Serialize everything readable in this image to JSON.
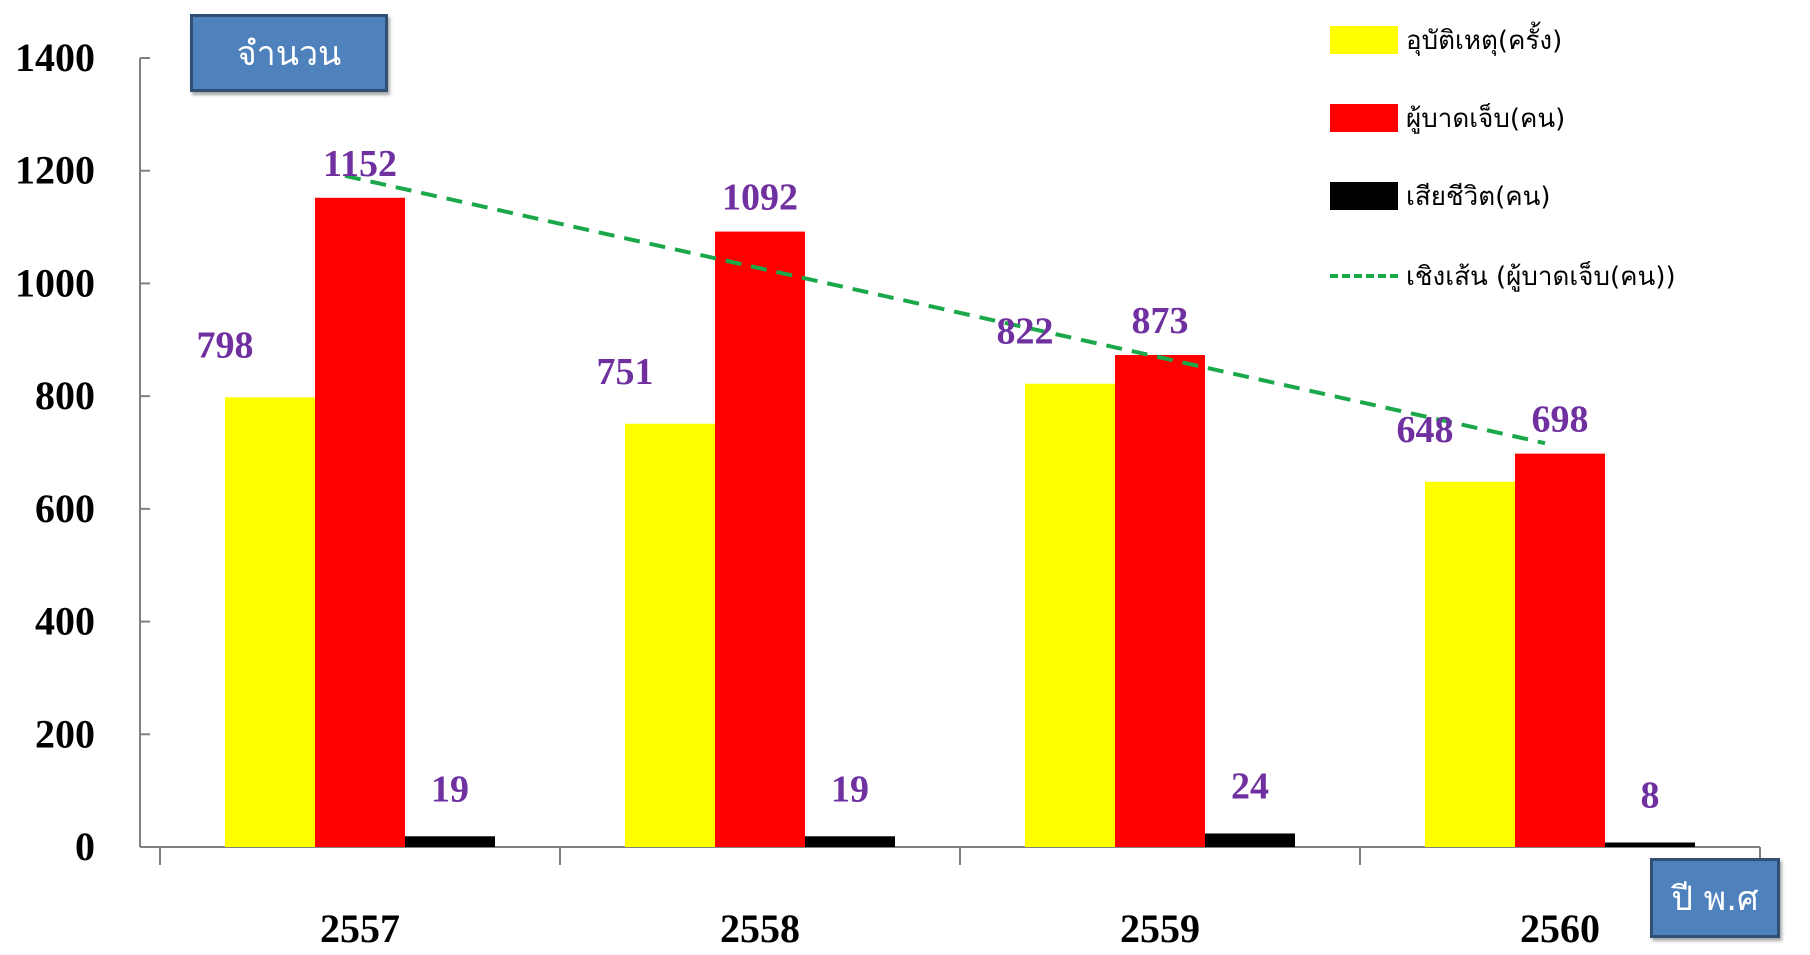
{
  "chart_data": {
    "type": "bar",
    "categories": [
      "2557",
      "2558",
      "2559",
      "2560"
    ],
    "series": [
      {
        "name": "อุบัติเหตุ(ครั้ง)",
        "values": [
          798,
          751,
          822,
          648
        ],
        "color": "#FFFF00"
      },
      {
        "name": "ผู้บาดเจ็บ(คน)",
        "values": [
          1152,
          1092,
          873,
          698
        ],
        "color": "#FF0000"
      },
      {
        "name": "เสียชีวิต(คน)",
        "values": [
          19,
          19,
          24,
          8
        ],
        "color": "#000000"
      }
    ],
    "trendline": {
      "name": "เชิงเส้น (ผู้บาดเจ็บ(คน))",
      "of_series": "ผู้บาดเจ็บ(คน)",
      "type": "linear",
      "color": "#1BA84A",
      "style": "dashed"
    },
    "ylabel": "จำนวน",
    "xlabel": "ปี พ.ศ",
    "ylim": [
      0,
      1400
    ],
    "yticks": [
      0,
      200,
      400,
      600,
      800,
      1000,
      1200,
      1400
    ],
    "data_label_color": "#7030A0",
    "grid": false,
    "legend_position": "top-right"
  }
}
